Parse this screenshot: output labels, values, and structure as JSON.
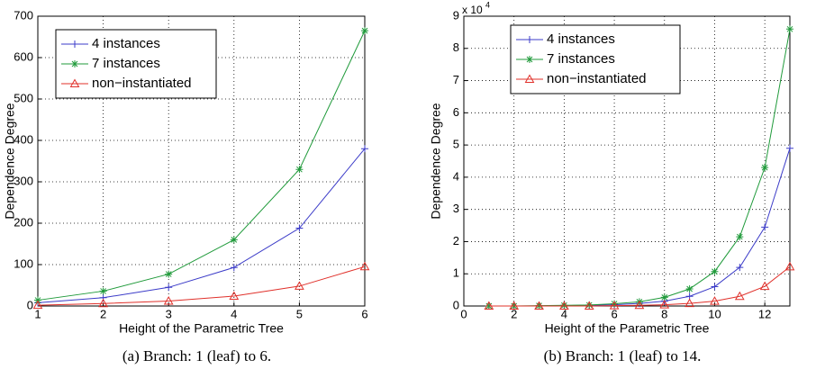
{
  "chart_data": [
    {
      "type": "line",
      "caption": "(a) Branch: 1 (leaf) to 6.",
      "xlabel": "Height of the Parametric Tree",
      "ylabel": "Dependence Degree",
      "x": [
        1,
        2,
        3,
        4,
        5,
        6
      ],
      "xlim": [
        1,
        6
      ],
      "xticks": [
        1,
        2,
        3,
        4,
        5,
        6
      ],
      "ylim": [
        0,
        700
      ],
      "yticks": [
        0,
        100,
        200,
        300,
        400,
        500,
        600,
        700
      ],
      "grid": true,
      "legend": "upper left",
      "series": [
        {
          "name": "4 instances",
          "color": "#3b3bc8",
          "marker": "+",
          "values": [
            8,
            20,
            45,
            93,
            188,
            380
          ]
        },
        {
          "name": "7 instances",
          "color": "#1f9a3a",
          "marker": "*",
          "values": [
            14,
            36,
            77,
            160,
            330,
            665
          ]
        },
        {
          "name": "non−instantiated",
          "color": "#e0302a",
          "marker": "^",
          "values": [
            2,
            6,
            12,
            24,
            48,
            95
          ]
        }
      ]
    },
    {
      "type": "line",
      "caption": "(b) Branch: 1 (leaf) to 14.",
      "xlabel": "Height of the Parametric Tree",
      "ylabel": "Dependence Degree",
      "y_multiplier": {
        "base": "x 10",
        "exponent": "4"
      },
      "x": [
        1,
        2,
        3,
        4,
        5,
        6,
        7,
        8,
        9,
        10,
        11,
        12,
        13
      ],
      "xlim": [
        0,
        13
      ],
      "xticks": [
        0,
        2,
        4,
        6,
        8,
        10,
        12
      ],
      "ylim": [
        0,
        9
      ],
      "yticks": [
        0,
        1,
        2,
        3,
        4,
        5,
        6,
        7,
        8,
        9
      ],
      "grid": true,
      "legend": "upper left",
      "series": [
        {
          "name": "4 instances",
          "color": "#3b3bc8",
          "marker": "+",
          "values": [
            0,
            0,
            0,
            0.01,
            0.02,
            0.04,
            0.08,
            0.15,
            0.3,
            0.6,
            1.2,
            2.45,
            4.9
          ]
        },
        {
          "name": "7 instances",
          "color": "#1f9a3a",
          "marker": "*",
          "values": [
            0,
            0,
            0.01,
            0.02,
            0.03,
            0.07,
            0.13,
            0.27,
            0.53,
            1.07,
            2.15,
            4.3,
            8.6
          ]
        },
        {
          "name": "non−instantiated",
          "color": "#e0302a",
          "marker": "^",
          "values": [
            0,
            0,
            0,
            0,
            0,
            0.01,
            0.02,
            0.04,
            0.08,
            0.15,
            0.3,
            0.61,
            1.22
          ]
        }
      ]
    }
  ]
}
